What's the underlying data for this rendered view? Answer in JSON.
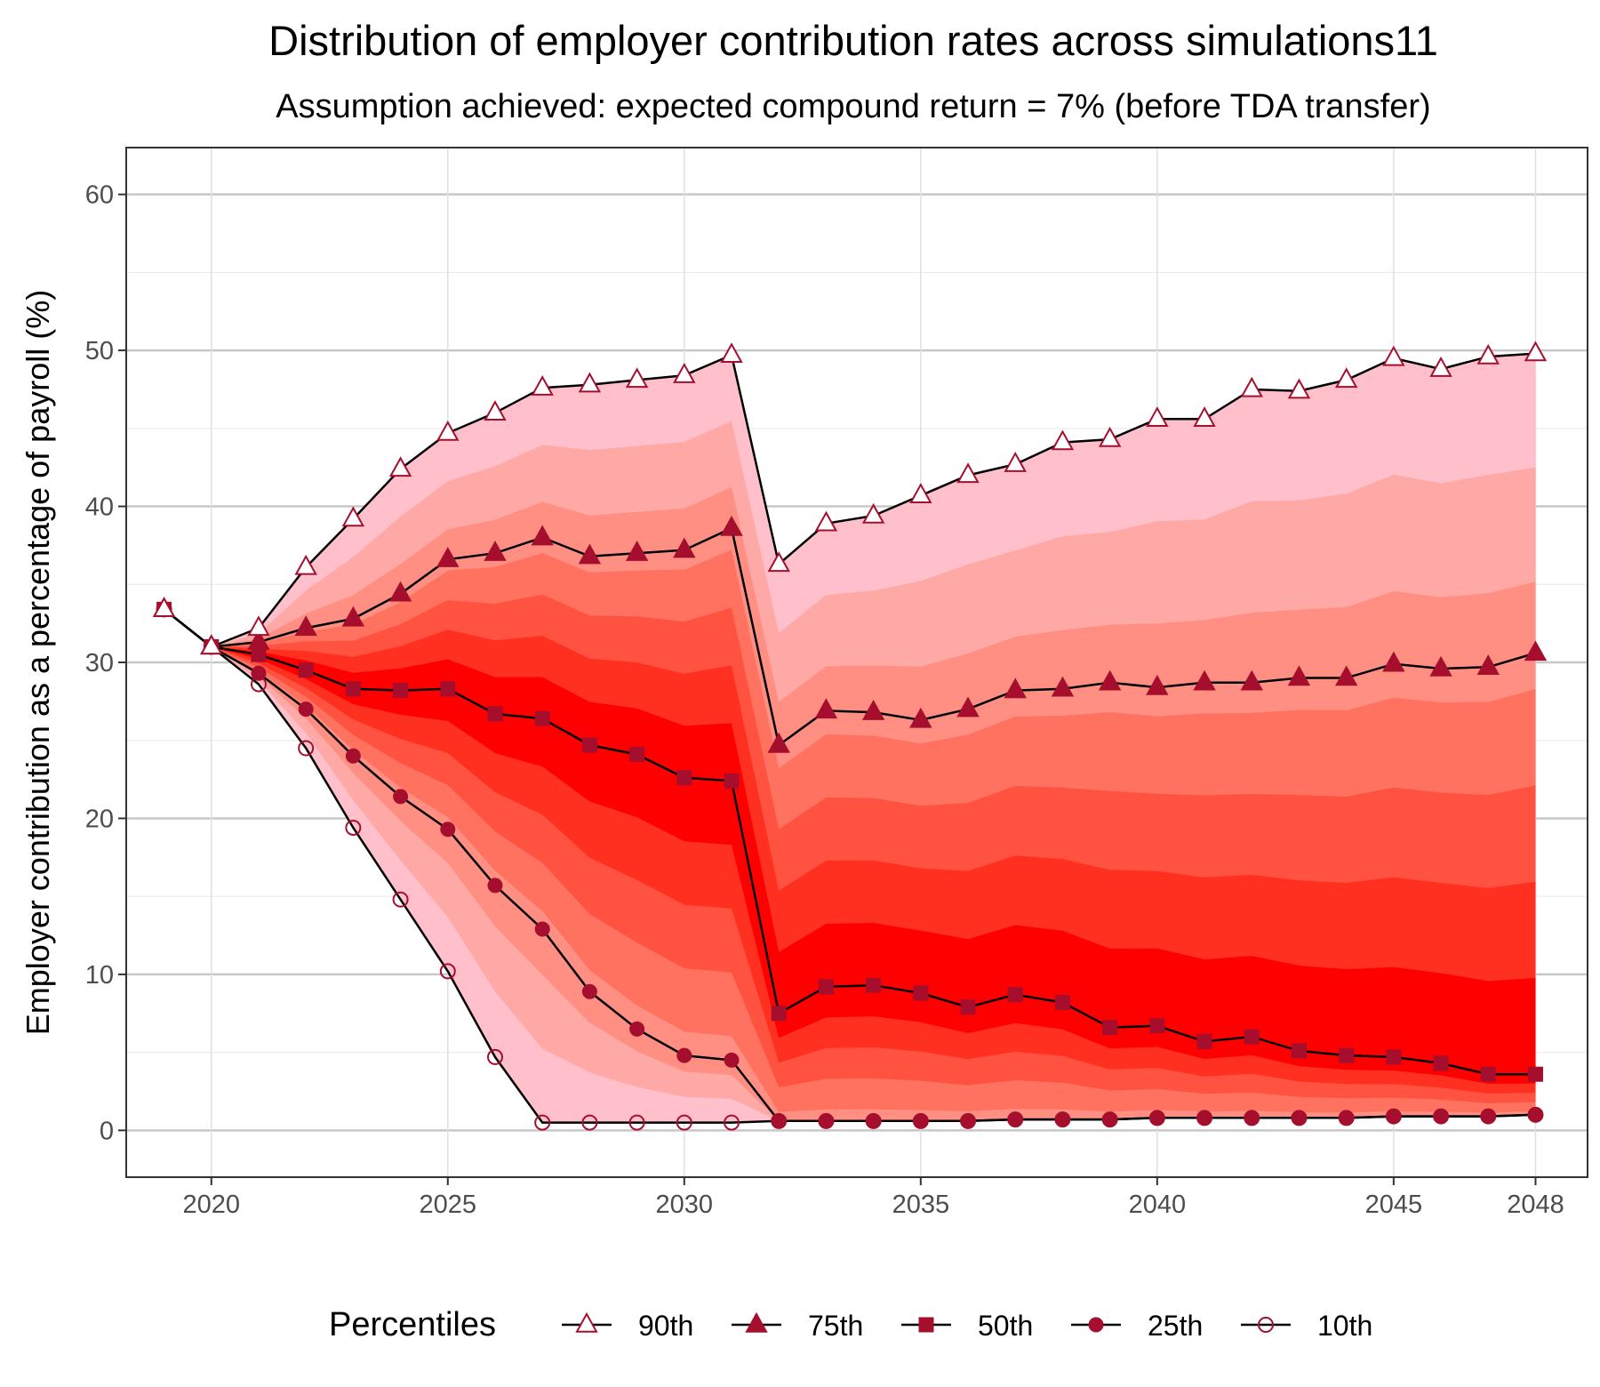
{
  "chart_data": {
    "type": "area",
    "title": "Distribution of employer contribution rates across simulations11",
    "subtitle": "Assumption achieved: expected compound return = 7% (before TDA transfer)",
    "xlabel": "",
    "ylabel": "Employer contribution as a percentage of payroll (%)",
    "xlim": [
      2018.2,
      2049.1
    ],
    "ylim": [
      -3,
      63
    ],
    "x_ticks": [
      2020,
      2025,
      2030,
      2035,
      2040,
      2045,
      2048
    ],
    "x_tick_labels": [
      "2020",
      "2025",
      "2030",
      "2035",
      "2040",
      "2045",
      "2048"
    ],
    "y_ticks": [
      0,
      10,
      20,
      30,
      40,
      50,
      60
    ],
    "y_tick_labels": [
      "0",
      "10",
      "20",
      "30",
      "40",
      "50",
      "60"
    ],
    "grid": true,
    "legend_title": "Percentiles",
    "legend_position": "bottom",
    "x": [
      2019,
      2020,
      2021,
      2022,
      2023,
      2024,
      2025,
      2026,
      2027,
      2028,
      2029,
      2030,
      2031,
      2032,
      2033,
      2034,
      2035,
      2036,
      2037,
      2038,
      2039,
      2040,
      2041,
      2042,
      2043,
      2044,
      2045,
      2046,
      2047,
      2048
    ],
    "series": [
      {
        "name": "90th",
        "marker": "triangle-open",
        "values": [
          33.4,
          31.0,
          32.2,
          36.1,
          39.2,
          42.4,
          44.7,
          46.0,
          47.6,
          47.8,
          48.1,
          48.4,
          49.7,
          36.3,
          38.9,
          39.4,
          40.7,
          42.0,
          42.7,
          44.1,
          44.3,
          45.6,
          45.6,
          47.5,
          47.4,
          48.1,
          49.5,
          48.8,
          49.6,
          49.8
        ]
      },
      {
        "name": "75th",
        "marker": "triangle-filled",
        "values": [
          33.4,
          31.0,
          31.3,
          32.2,
          32.8,
          34.4,
          36.6,
          37.0,
          38.0,
          36.8,
          37.0,
          37.2,
          38.6,
          24.7,
          26.9,
          26.8,
          26.3,
          27.0,
          28.2,
          28.3,
          28.7,
          28.4,
          28.7,
          28.7,
          29.0,
          29.0,
          29.9,
          29.6,
          29.7,
          30.6
        ]
      },
      {
        "name": "50th",
        "marker": "square",
        "values": [
          33.4,
          31.0,
          30.5,
          29.5,
          28.3,
          28.2,
          28.3,
          26.7,
          26.4,
          24.7,
          24.1,
          22.6,
          22.4,
          7.5,
          9.2,
          9.3,
          8.8,
          7.9,
          8.7,
          8.2,
          6.6,
          6.7,
          5.7,
          6.0,
          5.1,
          4.8,
          4.7,
          4.3,
          3.6,
          3.6
        ]
      },
      {
        "name": "25th",
        "marker": "circle-filled",
        "values": [
          33.4,
          31.0,
          29.3,
          27.0,
          24.0,
          21.4,
          19.3,
          15.7,
          12.9,
          8.9,
          6.5,
          4.8,
          4.5,
          0.6,
          0.6,
          0.6,
          0.6,
          0.6,
          0.7,
          0.7,
          0.7,
          0.8,
          0.8,
          0.8,
          0.8,
          0.8,
          0.9,
          0.9,
          0.9,
          1.0
        ]
      },
      {
        "name": "10th",
        "marker": "circle-open",
        "values": [
          33.4,
          31.0,
          28.6,
          24.5,
          19.4,
          14.8,
          10.2,
          4.7,
          0.5,
          0.5,
          0.5,
          0.5,
          0.5,
          0.6,
          0.6,
          0.6,
          0.6,
          0.6,
          0.7,
          0.7,
          0.7,
          0.8,
          0.8,
          0.8,
          0.8,
          0.8,
          0.9,
          0.9,
          0.9,
          1.0
        ]
      }
    ],
    "colors": {
      "line": "#000000",
      "marker": "#a50f2d",
      "band_outer": "#ffc0cb",
      "band_inner": "#ff0000"
    }
  }
}
